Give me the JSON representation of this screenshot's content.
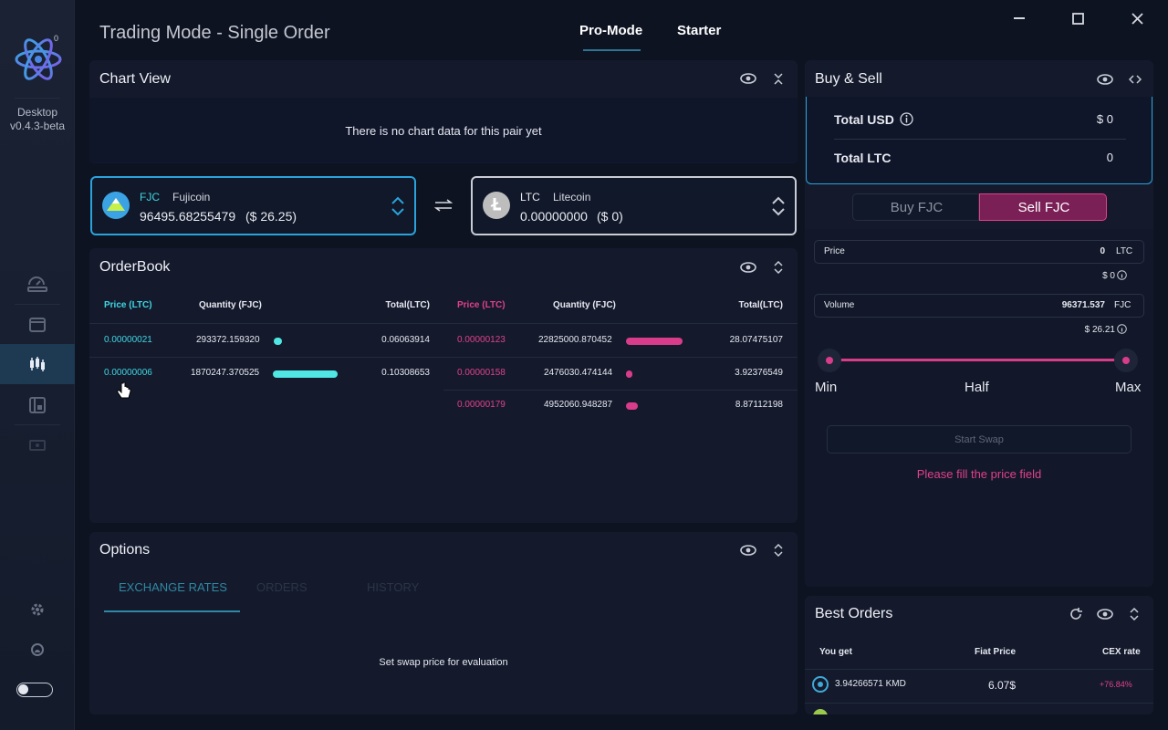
{
  "window": {
    "title": "Trading Mode - Single Order",
    "tabs": [
      "Pro-Mode",
      "Starter"
    ],
    "active_tab": "Pro-Mode",
    "controls": {
      "minimize": "minimize",
      "maximize": "maximize",
      "close": "close"
    }
  },
  "sidebar": {
    "badge": "0",
    "app_name": "Desktop",
    "version": "v0.4.3-beta",
    "items": [
      "dashboard",
      "wallet",
      "dex",
      "addressbook",
      "news"
    ],
    "bottom": [
      "settings",
      "support",
      "theme-toggle"
    ]
  },
  "chart_view": {
    "title": "Chart View",
    "empty_message": "There is no chart data for this pair yet"
  },
  "pair": {
    "left": {
      "ticker": "FJC",
      "name": "Fujicoin",
      "balance": "96495.68255479",
      "fiat": "($ 26.25)"
    },
    "right": {
      "ticker": "LTC",
      "name": "Litecoin",
      "balance": "0.00000000",
      "fiat": "($ 0)"
    }
  },
  "orderbook": {
    "title": "OrderBook",
    "bids_header": {
      "price": "Price (LTC)",
      "quantity": "Quantity (FJC)",
      "total": "Total(LTC)"
    },
    "asks_header": {
      "price": "Price (LTC)",
      "quantity": "Quantity (FJC)",
      "total": "Total(LTC)"
    },
    "bids": [
      {
        "price": "0.00000021",
        "quantity": "293372.159320",
        "total": "0.06063914",
        "depth": 0.1
      },
      {
        "price": "0.00000006",
        "quantity": "1870247.370525",
        "total": "0.10308653",
        "depth": 1.0
      }
    ],
    "asks": [
      {
        "price": "0.00000123",
        "quantity": "22825000.870452",
        "total": "28.07475107",
        "depth": 1.0
      },
      {
        "price": "0.00000158",
        "quantity": "2476030.474144",
        "total": "3.92376549",
        "depth": 0.1
      },
      {
        "price": "0.00000179",
        "quantity": "4952060.948287",
        "total": "8.87112198",
        "depth": 0.2
      }
    ]
  },
  "options": {
    "title": "Options",
    "tabs": [
      "EXCHANGE RATES",
      "ORDERS",
      "HISTORY"
    ],
    "message": "Set swap price for evaluation"
  },
  "buy_sell": {
    "title": "Buy & Sell",
    "total_usd_label": "Total USD",
    "total_usd_value": "$ 0",
    "total_ltc_label": "Total LTC",
    "total_ltc_value": "0",
    "buy_label": "Buy FJC",
    "sell_label": "Sell FJC",
    "price_label": "Price",
    "price_value": "0",
    "price_unit": "LTC",
    "price_fiat": "$ 0",
    "volume_label": "Volume",
    "volume_value": "96371.537",
    "volume_unit": "FJC",
    "volume_fiat": "$ 26.21",
    "slider_min": "Min",
    "slider_half": "Half",
    "slider_max": "Max",
    "start_swap": "Start Swap",
    "error": "Please fill the price field"
  },
  "best_orders": {
    "title": "Best Orders",
    "headers": {
      "you_get": "You get",
      "fiat_price": "Fiat Price",
      "cex_rate": "CEX rate"
    },
    "rows": [
      {
        "amount": "3.94266571 KMD",
        "fiat": "6.07$",
        "cex": "+76.84%"
      }
    ]
  },
  "colors": {
    "accent_cyan": "#3fd6e3",
    "accent_pink": "#e0408a",
    "panel": "#141a2c",
    "bg": "#0e1322"
  }
}
